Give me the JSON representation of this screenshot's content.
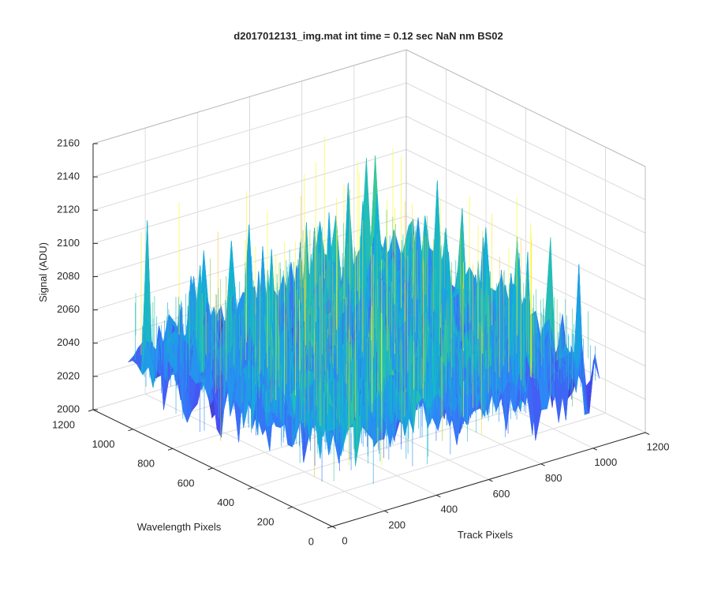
{
  "chart_data": {
    "type": "surface",
    "title": "d2017012131_img.mat int time = 0.12 sec  NaN nm BS02",
    "xlabel": "Track Pixels",
    "ylabel": "Wavelength Pixels",
    "zlabel": "Signal (ADU)",
    "xlim": [
      0,
      1200
    ],
    "ylim": [
      0,
      1200
    ],
    "zlim": [
      2000,
      2160
    ],
    "xticks": [
      0,
      200,
      400,
      600,
      800,
      1000,
      1200
    ],
    "yticks": [
      0,
      200,
      400,
      600,
      800,
      1000,
      1200
    ],
    "zticks": [
      2000,
      2020,
      2040,
      2060,
      2080,
      2100,
      2120,
      2140,
      2160
    ],
    "xtick_labels": [
      "0",
      "200",
      "400",
      "600",
      "800",
      "1000",
      "1200"
    ],
    "ytick_labels": [
      "0",
      "200",
      "400",
      "600",
      "800",
      "1000",
      "1200"
    ],
    "ztick_labels": [
      "2000",
      "2020",
      "2040",
      "2060",
      "2080",
      "2100",
      "2120",
      "2140",
      "2160"
    ],
    "data_extent": {
      "x": [
        0,
        1024
      ],
      "y": [
        0,
        1024
      ]
    },
    "surface_mean": 2050,
    "surface_range": [
      2015,
      2150
    ],
    "colormap": "parula",
    "grid": true
  }
}
